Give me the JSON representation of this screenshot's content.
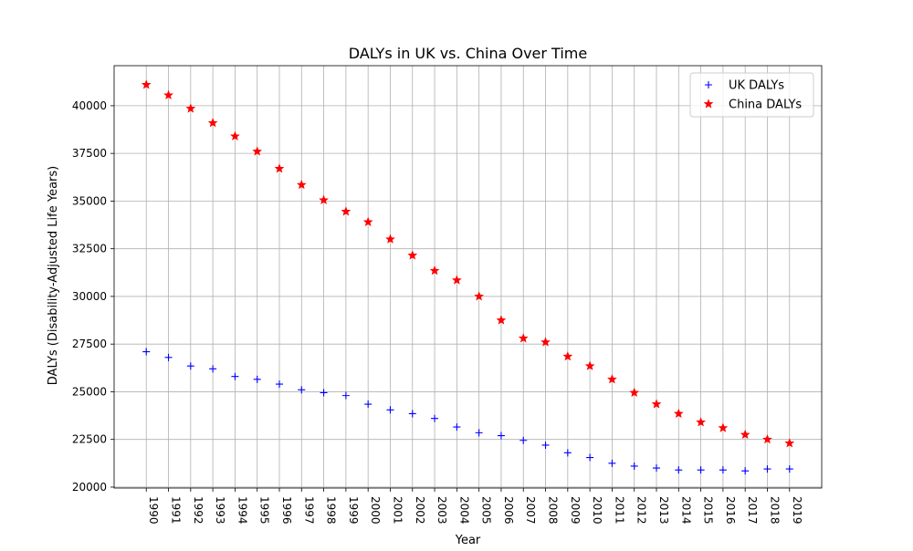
{
  "chart_data": {
    "type": "scatter",
    "title": "DALYs in UK vs. China Over Time",
    "xlabel": "Year",
    "ylabel": "DALYs (Disability-Adjusted Life Years)",
    "x": [
      1990,
      1991,
      1992,
      1993,
      1994,
      1995,
      1996,
      1997,
      1998,
      1999,
      2000,
      2001,
      2002,
      2003,
      2004,
      2005,
      2006,
      2007,
      2008,
      2009,
      2010,
      2011,
      2012,
      2013,
      2014,
      2015,
      2016,
      2017,
      2018,
      2019
    ],
    "xlim": [
      1988.55,
      2020.45
    ],
    "ylim": [
      19950,
      42100
    ],
    "yticks": [
      20000,
      22500,
      25000,
      27500,
      30000,
      32500,
      35000,
      37500,
      40000
    ],
    "grid": true,
    "legend_position": "top-right",
    "series": [
      {
        "name": "UK DALYs",
        "marker": "plus",
        "color": "#0000ff",
        "values": [
          27100,
          26800,
          26350,
          26200,
          25800,
          25650,
          25400,
          25100,
          24950,
          24800,
          24350,
          24050,
          23850,
          23600,
          23150,
          22850,
          22700,
          22450,
          22200,
          21800,
          21550,
          21250,
          21100,
          21000,
          20900,
          20900,
          20900,
          20850,
          20950,
          20950
        ]
      },
      {
        "name": "China DALYs",
        "marker": "star",
        "color": "#ff0000",
        "values": [
          41100,
          40550,
          39850,
          39100,
          38400,
          37600,
          36700,
          35850,
          35050,
          34450,
          33900,
          33000,
          32150,
          31350,
          30850,
          30000,
          28750,
          27800,
          27600,
          26850,
          26350,
          25650,
          24950,
          24350,
          23850,
          23400,
          23100,
          22750,
          22500,
          22300
        ]
      }
    ]
  }
}
